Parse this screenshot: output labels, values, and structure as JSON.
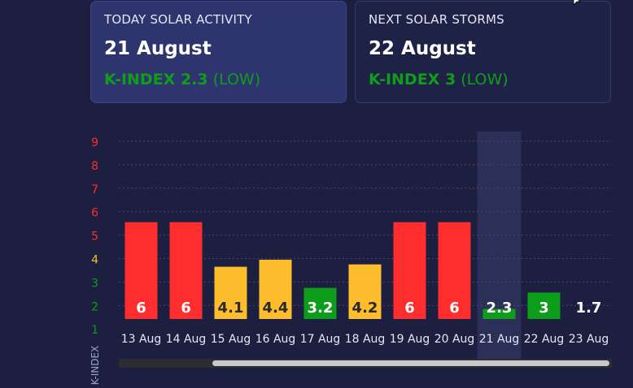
{
  "colors": {
    "background": "#1c1f40",
    "high": "#ff2d2d",
    "medium": "#fdbd2c",
    "low": "#0e9d1b",
    "highlight": "#2c3058",
    "scrollbar_track": "#2b2c34",
    "scrollbar_thumb": "#c8c8cc"
  },
  "today_card": {
    "title": "TODAY SOLAR ACTIVITY",
    "date": "21 August",
    "kindex_label": "K-INDEX 2.3",
    "level": "(LOW)"
  },
  "next_card": {
    "title": "NEXT SOLAR STORMS",
    "date": "22 August",
    "kindex_label": "K-INDEX 3",
    "level": "(LOW)"
  },
  "chart_data": {
    "type": "bar",
    "ylabel": "K-INDEX",
    "ylim": [
      1,
      9
    ],
    "y_ticks": [
      {
        "value": 9,
        "level": "high"
      },
      {
        "value": 8,
        "level": "high"
      },
      {
        "value": 7,
        "level": "high"
      },
      {
        "value": 6,
        "level": "high"
      },
      {
        "value": 5,
        "level": "high"
      },
      {
        "value": 4,
        "level": "medium"
      },
      {
        "value": 3,
        "level": "low"
      },
      {
        "value": 2,
        "level": "low"
      },
      {
        "value": 1,
        "level": "low"
      }
    ],
    "categories": [
      "13 Aug",
      "14 Aug",
      "15 Aug",
      "16 Aug",
      "17 Aug",
      "18 Aug",
      "19 Aug",
      "20 Aug",
      "21 Aug",
      "22 Aug",
      "23 Aug"
    ],
    "values": [
      6,
      6,
      4.1,
      4.4,
      3.2,
      4.2,
      6,
      6,
      2.3,
      3,
      1.7
    ],
    "value_labels": [
      "6",
      "6",
      "4.1",
      "4.4",
      "3.2",
      "4.2",
      "6",
      "6",
      "2.3",
      "3",
      "1.7"
    ],
    "levels": [
      "high",
      "high",
      "medium",
      "medium",
      "low",
      "medium",
      "high",
      "high",
      "low",
      "low",
      "low"
    ],
    "highlighted_category": "21 Aug",
    "grid": "dotted horizontal",
    "horizontal_scroll": true
  }
}
